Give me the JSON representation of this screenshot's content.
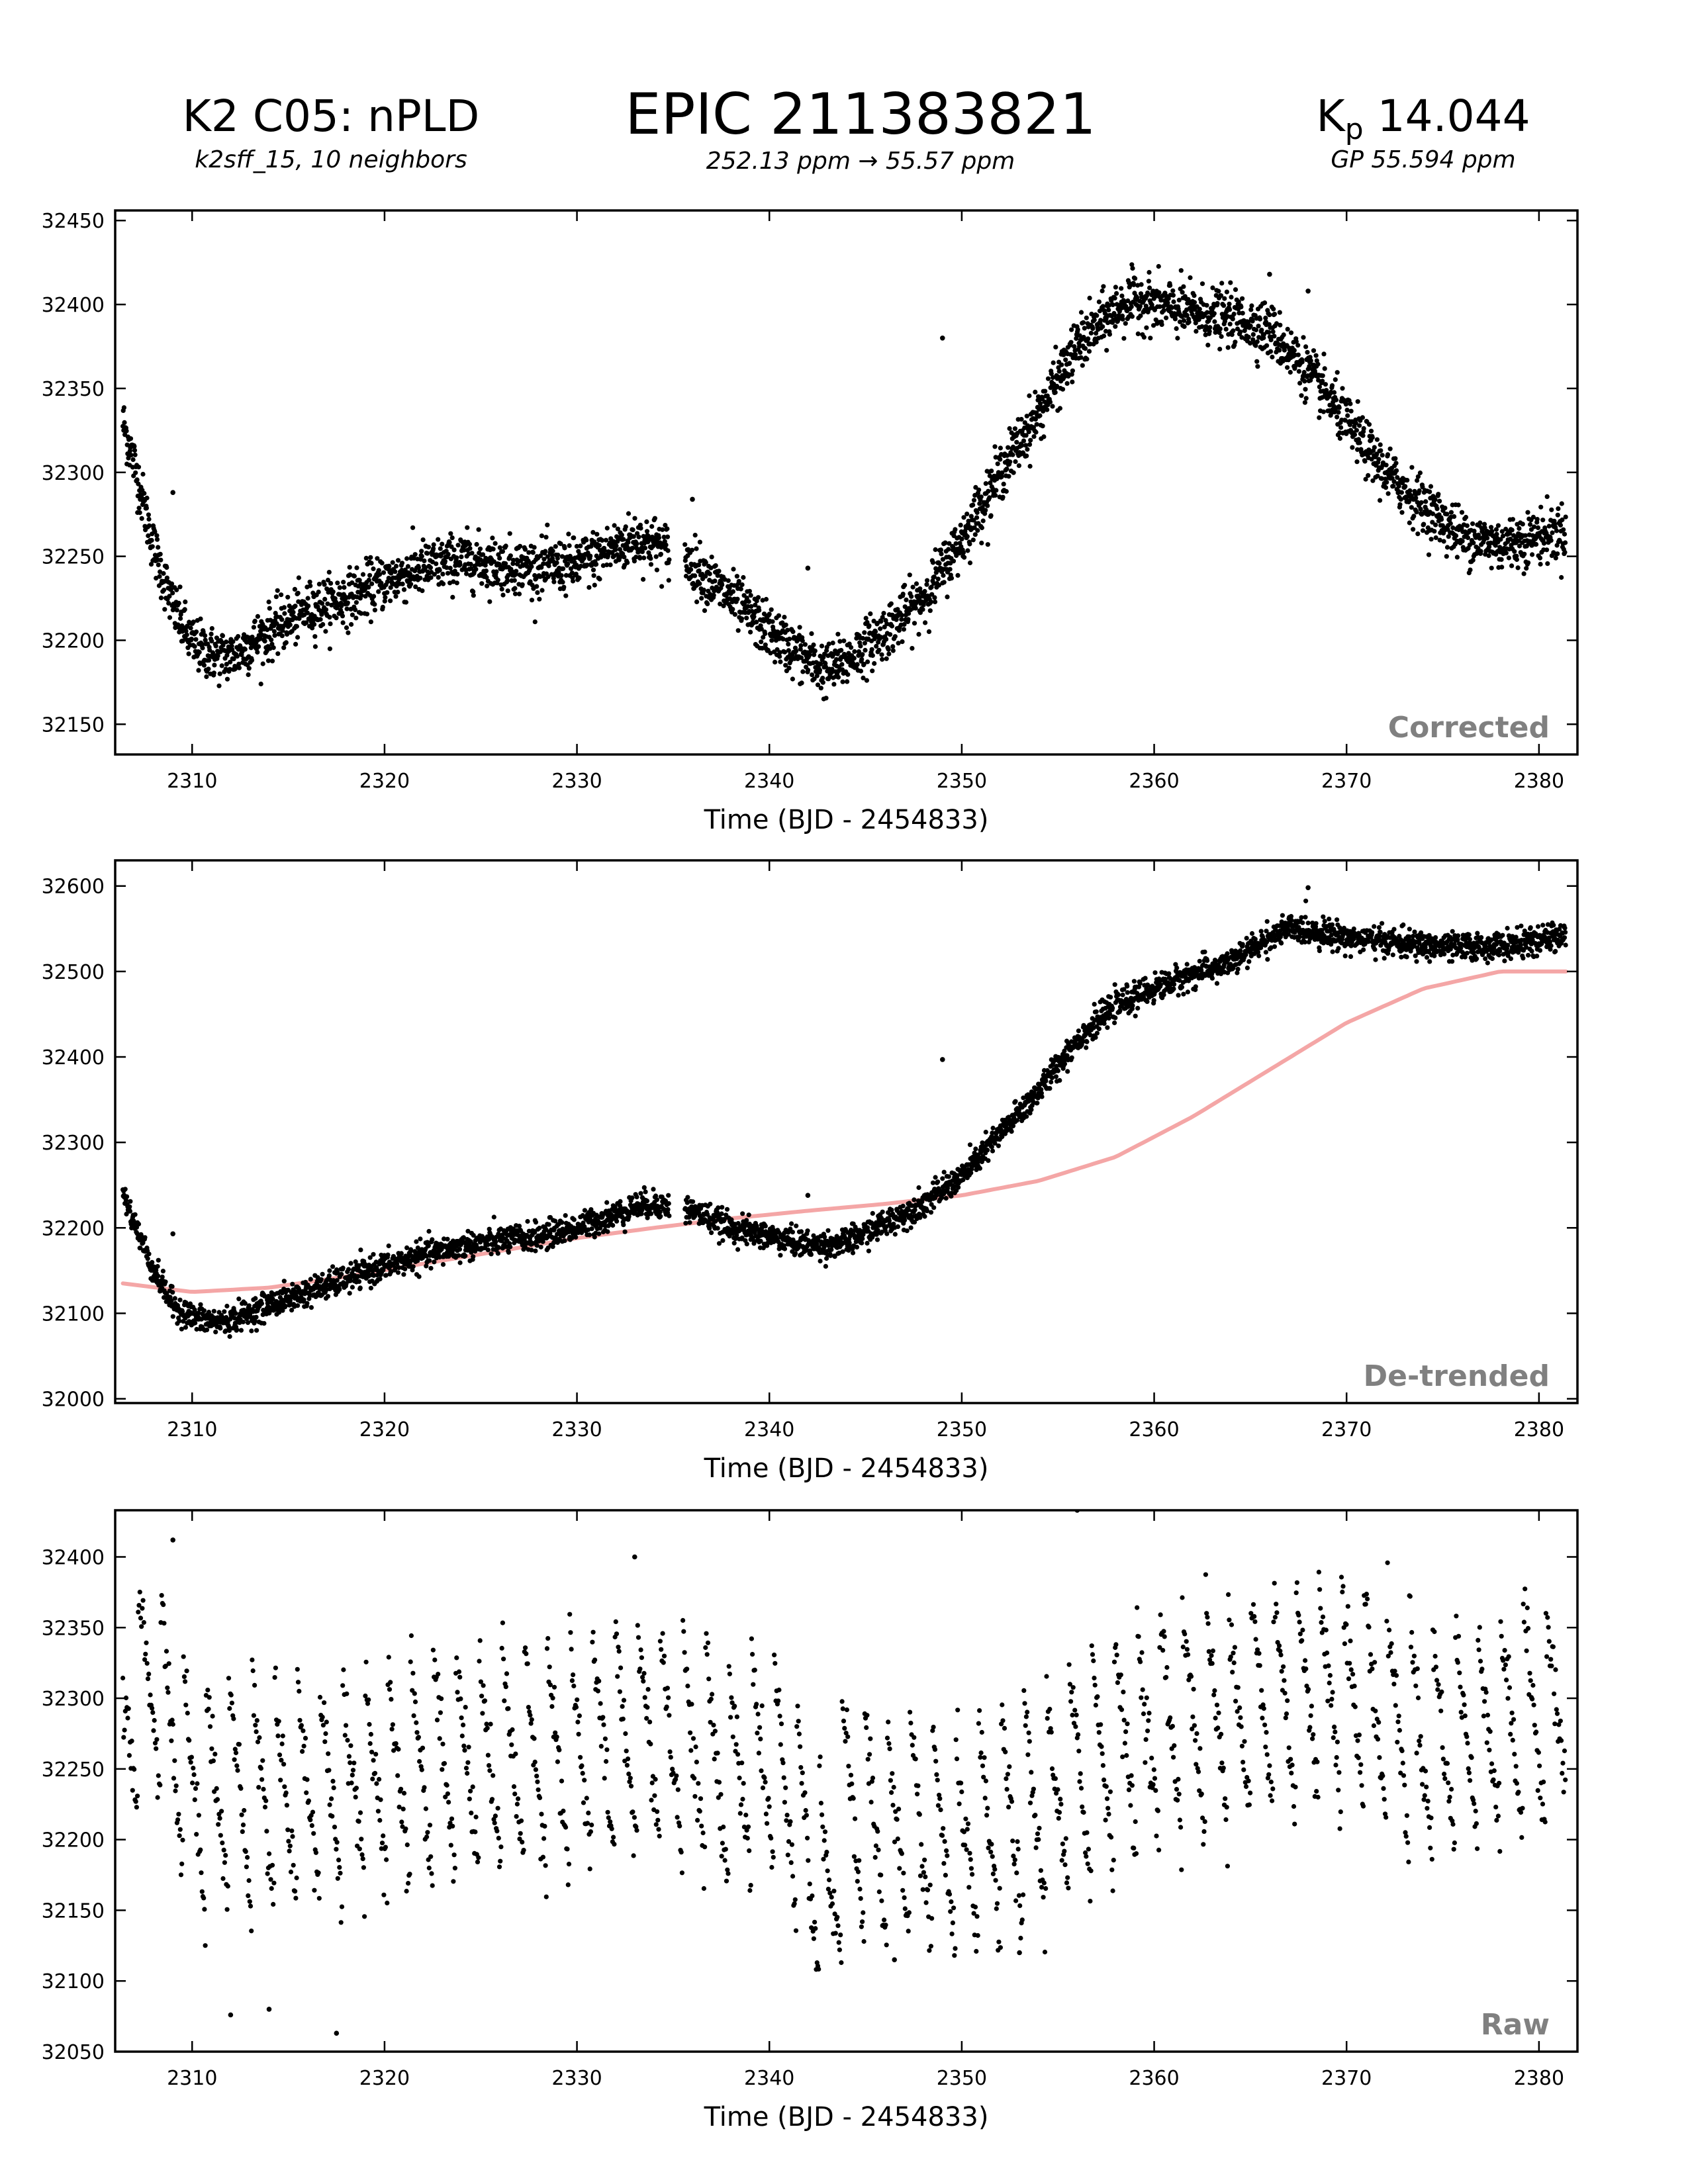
{
  "header": {
    "left_title": "K2 C05: nPLD",
    "left_subtitle": "k2sff_15, 10 neighbors",
    "center_title": "EPIC 211383821",
    "center_subtitle": "252.13 ppm → 55.57 ppm",
    "right_title_base": "K",
    "right_title_subscript": "p",
    "right_title_value": " 14.044",
    "right_subtitle": "GP 55.594 ppm"
  },
  "chart_data": [
    {
      "type": "scatter",
      "title": "Corrected",
      "xlabel": "Time (BJD - 2454833)",
      "ylabel": "",
      "xlim": [
        2306,
        2382
      ],
      "ylim": [
        32132,
        32456
      ],
      "xticks": [
        2310,
        2320,
        2330,
        2340,
        2350,
        2360,
        2370,
        2380
      ],
      "yticks": [
        32150,
        32200,
        32250,
        32300,
        32350,
        32400,
        32450
      ],
      "grid": false,
      "point_color": "#000000",
      "trend_x": [
        2306.4,
        2307,
        2308,
        2309,
        2310,
        2311,
        2312,
        2314,
        2316,
        2318,
        2320,
        2322,
        2324,
        2326,
        2328,
        2330,
        2332,
        2333,
        2334,
        2336,
        2338,
        2340,
        2342,
        2343,
        2344,
        2346,
        2348,
        2350,
        2352,
        2354,
        2356,
        2358,
        2359,
        2360,
        2362,
        2364,
        2366,
        2368,
        2370,
        2372,
        2374,
        2376,
        2378,
        2380,
        2381.4
      ],
      "trend_y": [
        32330,
        32305,
        32255,
        32220,
        32198,
        32192,
        32190,
        32205,
        32218,
        32225,
        32235,
        32243,
        32248,
        32245,
        32243,
        32245,
        32255,
        32260,
        32258,
        32245,
        32225,
        32205,
        32188,
        32182,
        32188,
        32205,
        32225,
        32260,
        32300,
        32335,
        32375,
        32397,
        32403,
        32400,
        32395,
        32392,
        32385,
        32360,
        32330,
        32300,
        32280,
        32262,
        32257,
        32262,
        32265
      ],
      "scatter_sigma": 8,
      "outliers": [
        [
          2349,
          32380
        ],
        [
          2342,
          32243
        ],
        [
          2336,
          32284
        ],
        [
          2309,
          32288
        ],
        [
          2368,
          32408
        ],
        [
          2366,
          32418
        ]
      ]
    },
    {
      "type": "scatter",
      "title": "De-trended",
      "xlabel": "Time (BJD - 2454833)",
      "ylabel": "",
      "xlim": [
        2306,
        2382
      ],
      "ylim": [
        31995,
        32630
      ],
      "xticks": [
        2310,
        2320,
        2330,
        2340,
        2350,
        2360,
        2370,
        2380
      ],
      "yticks": [
        32000,
        32100,
        32200,
        32300,
        32400,
        32500,
        32600
      ],
      "grid": false,
      "point_color": "#000000",
      "gp_color": "#f4a6a6",
      "gp_x": [
        2306.4,
        2310,
        2314,
        2318,
        2322,
        2326,
        2330,
        2334,
        2338,
        2342,
        2346,
        2350,
        2354,
        2358,
        2362,
        2366,
        2370,
        2374,
        2378,
        2381.4
      ],
      "gp_y": [
        32135,
        32125,
        32130,
        32143,
        32158,
        32173,
        32188,
        32200,
        32211,
        32220,
        32228,
        32238,
        32255,
        32283,
        32330,
        32385,
        32440,
        32480,
        32500,
        32500
      ],
      "trend_x": [
        2306.4,
        2307,
        2308,
        2309,
        2310,
        2311,
        2312,
        2314,
        2316,
        2318,
        2320,
        2322,
        2324,
        2326,
        2328,
        2330,
        2332,
        2333,
        2334,
        2336,
        2338,
        2340,
        2342,
        2343,
        2344,
        2346,
        2348,
        2350,
        2352,
        2354,
        2356,
        2358,
        2360,
        2362,
        2364,
        2366,
        2367,
        2368,
        2370,
        2372,
        2374,
        2376,
        2378,
        2380,
        2381.4
      ],
      "trend_y": [
        32240,
        32205,
        32150,
        32110,
        32095,
        32090,
        32092,
        32110,
        32125,
        32140,
        32155,
        32168,
        32178,
        32185,
        32190,
        32200,
        32215,
        32225,
        32228,
        32220,
        32200,
        32190,
        32180,
        32180,
        32183,
        32205,
        32228,
        32260,
        32310,
        32360,
        32420,
        32460,
        32480,
        32497,
        32510,
        32540,
        32550,
        32548,
        32540,
        32535,
        32530,
        32528,
        32530,
        32535,
        32545
      ],
      "scatter_sigma": 8,
      "outliers": [
        [
          2349,
          32397
        ],
        [
          2342,
          32238
        ],
        [
          2368,
          32598
        ],
        [
          2309,
          32193
        ]
      ]
    },
    {
      "type": "scatter",
      "title": "Raw",
      "xlabel": "Time (BJD - 2454833)",
      "ylabel": "",
      "xlim": [
        2306,
        2382
      ],
      "ylim": [
        32050,
        32433
      ],
      "xticks": [
        2310,
        2320,
        2330,
        2340,
        2350,
        2360,
        2370,
        2380
      ],
      "yticks": [
        32050,
        32100,
        32150,
        32200,
        32250,
        32300,
        32350,
        32400
      ],
      "grid": false,
      "point_color": "#000000",
      "trend_x": [
        2306.4,
        2308,
        2310,
        2314,
        2318,
        2322,
        2326,
        2330,
        2334,
        2338,
        2340,
        2342,
        2343,
        2344,
        2346,
        2350,
        2354,
        2358,
        2362,
        2366,
        2370,
        2374,
        2378,
        2381.4
      ],
      "trend_y": [
        32300,
        32345,
        32255,
        32260,
        32260,
        32275,
        32285,
        32285,
        32300,
        32270,
        32285,
        32220,
        32180,
        32245,
        32225,
        32220,
        32245,
        32290,
        32310,
        32325,
        32335,
        32295,
        32305,
        32320
      ],
      "scatter_sigma": 50,
      "outliers": [
        [
          2309,
          32412
        ],
        [
          2333,
          32400
        ],
        [
          2356,
          32433
        ],
        [
          2317.5,
          32063
        ],
        [
          2312,
          32076
        ],
        [
          2314,
          32080
        ],
        [
          2346.5,
          32115
        ],
        [
          2353,
          32120
        ]
      ]
    }
  ]
}
